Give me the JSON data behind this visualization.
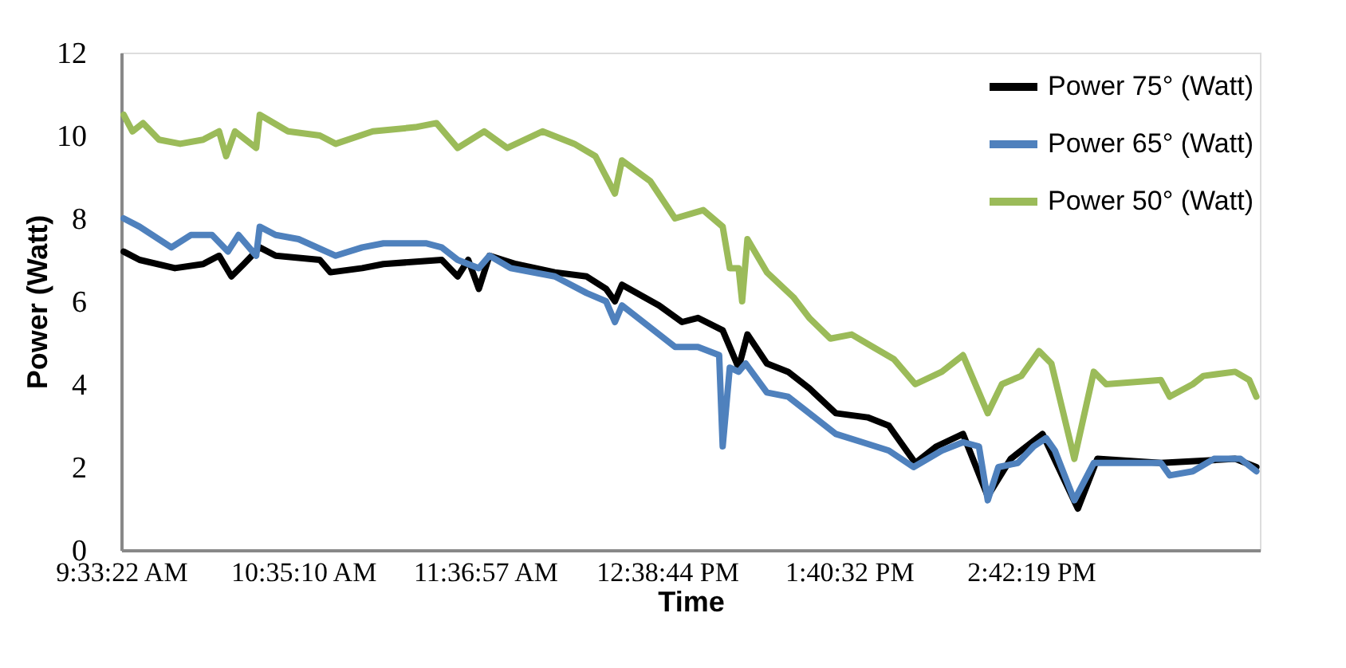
{
  "chart_data": {
    "type": "line",
    "xlabel": "Time",
    "ylabel": "Power (Watt)",
    "xlim": [
      9.5561,
      16.0
    ],
    "xticks": [
      {
        "value": 9.5561,
        "label": "9:33:22 AM"
      },
      {
        "value": 10.5861,
        "label": "10:35:10 AM"
      },
      {
        "value": 11.6158,
        "label": "11:36:57 AM"
      },
      {
        "value": 12.6456,
        "label": "12:38:44 PM"
      },
      {
        "value": 13.6756,
        "label": "1:40:32 PM"
      },
      {
        "value": 14.7053,
        "label": "2:42:19 PM"
      }
    ],
    "ylim": [
      0,
      12
    ],
    "yticks": [
      0,
      2,
      4,
      6,
      8,
      10,
      12
    ],
    "grid": false,
    "legend": "top right",
    "marker": "none",
    "line_style": "solid",
    "series": [
      {
        "name": "Power 75° (Watt)",
        "color": "#000000",
        "x": [
          9.57,
          9.66,
          9.86,
          10.02,
          10.11,
          10.18,
          10.25,
          10.34,
          10.43,
          10.68,
          10.74,
          10.92,
          11.04,
          11.37,
          11.46,
          11.52,
          11.58,
          11.64,
          11.79,
          12.01,
          12.19,
          12.3,
          12.35,
          12.39,
          12.6,
          12.73,
          12.82,
          12.96,
          13.05,
          13.1,
          13.21,
          13.33,
          13.45,
          13.6,
          13.78,
          13.9,
          14.05,
          14.17,
          14.32,
          14.46,
          14.59,
          14.77,
          14.97,
          15.08,
          15.44,
          15.86,
          15.98
        ],
        "values": [
          7.2,
          7.0,
          6.8,
          6.9,
          7.1,
          6.6,
          6.9,
          7.3,
          7.1,
          7.0,
          6.7,
          6.8,
          6.9,
          7.0,
          6.6,
          7.0,
          6.3,
          7.1,
          6.9,
          6.7,
          6.6,
          6.3,
          6.0,
          6.4,
          5.9,
          5.5,
          5.6,
          5.3,
          4.4,
          5.2,
          4.5,
          4.3,
          3.9,
          3.3,
          3.2,
          3.0,
          2.1,
          2.5,
          2.8,
          1.3,
          2.2,
          2.8,
          1.0,
          2.2,
          2.1,
          2.2,
          2.0
        ]
      },
      {
        "name": "Power 65° (Watt)",
        "color": "#4f81bd",
        "x": [
          9.57,
          9.66,
          9.84,
          9.95,
          10.07,
          10.16,
          10.22,
          10.32,
          10.34,
          10.43,
          10.56,
          10.77,
          10.92,
          11.04,
          11.28,
          11.37,
          11.46,
          11.58,
          11.64,
          11.76,
          12.01,
          12.19,
          12.3,
          12.35,
          12.39,
          12.69,
          12.82,
          12.94,
          12.96,
          13.0,
          13.05,
          13.09,
          13.21,
          13.33,
          13.45,
          13.6,
          13.75,
          13.9,
          14.04,
          14.2,
          14.32,
          14.41,
          14.46,
          14.52,
          14.63,
          14.72,
          14.79,
          14.84,
          14.95,
          15.06,
          15.2,
          15.44,
          15.49,
          15.62,
          15.74,
          15.89,
          15.98
        ],
        "values": [
          8.0,
          7.8,
          7.3,
          7.6,
          7.6,
          7.2,
          7.6,
          7.1,
          7.8,
          7.6,
          7.5,
          7.1,
          7.3,
          7.4,
          7.4,
          7.3,
          7.0,
          6.8,
          7.1,
          6.8,
          6.6,
          6.2,
          6.0,
          5.5,
          5.9,
          4.9,
          4.9,
          4.7,
          2.5,
          4.4,
          4.3,
          4.5,
          3.8,
          3.7,
          3.3,
          2.8,
          2.6,
          2.4,
          2.0,
          2.4,
          2.6,
          2.5,
          1.2,
          2.0,
          2.1,
          2.5,
          2.7,
          2.4,
          1.2,
          2.1,
          2.1,
          2.1,
          1.8,
          1.9,
          2.2,
          2.2,
          1.9
        ]
      },
      {
        "name": "Power 50° (Watt)",
        "color": "#9bbb59",
        "x": [
          9.57,
          9.62,
          9.68,
          9.77,
          9.89,
          10.02,
          10.11,
          10.15,
          10.2,
          10.32,
          10.34,
          10.5,
          10.68,
          10.77,
          10.98,
          11.22,
          11.34,
          11.46,
          11.61,
          11.74,
          11.94,
          12.12,
          12.24,
          12.35,
          12.39,
          12.55,
          12.69,
          12.85,
          12.96,
          13.0,
          13.05,
          13.07,
          13.1,
          13.21,
          13.36,
          13.45,
          13.57,
          13.69,
          13.81,
          13.93,
          14.05,
          14.2,
          14.32,
          14.46,
          14.54,
          14.65,
          14.75,
          14.82,
          14.95,
          15.06,
          15.13,
          15.44,
          15.49,
          15.62,
          15.68,
          15.86,
          15.94,
          15.98
        ],
        "values": [
          10.5,
          10.1,
          10.3,
          9.9,
          9.8,
          9.9,
          10.1,
          9.5,
          10.1,
          9.7,
          10.5,
          10.1,
          10.0,
          9.8,
          10.1,
          10.2,
          10.3,
          9.7,
          10.1,
          9.7,
          10.1,
          9.8,
          9.5,
          8.6,
          9.4,
          8.9,
          8.0,
          8.2,
          7.8,
          6.8,
          6.8,
          6.0,
          7.5,
          6.7,
          6.1,
          5.6,
          5.1,
          5.2,
          4.9,
          4.6,
          4.0,
          4.3,
          4.7,
          3.3,
          4.0,
          4.2,
          4.8,
          4.5,
          2.2,
          4.3,
          4.0,
          4.1,
          3.7,
          4.0,
          4.2,
          4.3,
          4.1,
          3.7
        ]
      }
    ]
  }
}
